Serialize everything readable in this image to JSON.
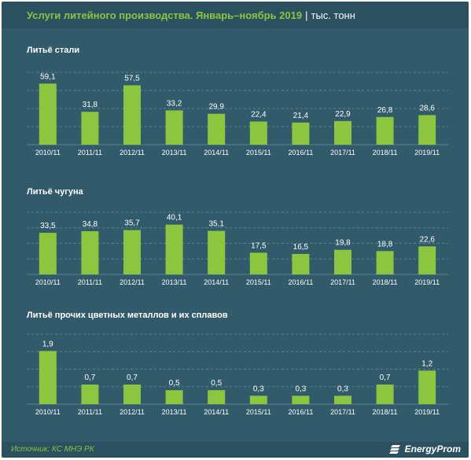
{
  "header": {
    "title": "Услуги литейного производства. Январь–ноябрь 2019",
    "separator": "|",
    "unit": "тыс. тонн"
  },
  "footer": {
    "source": "Источник: КС МНЭ РК",
    "brand": "EnergyProm"
  },
  "colors": {
    "background": "#315a6b",
    "header": "#2b505f",
    "bar": "#8cc63f",
    "title_accent": "#8cc63f",
    "grid": "#5f8290"
  },
  "icons": {
    "brand_logo": "energyprom-logo-icon"
  },
  "chart_data": [
    {
      "type": "bar",
      "title": "Литьё стали",
      "categories": [
        "2010/11",
        "2011/11",
        "2012/11",
        "2013/11",
        "2014/11",
        "2015/11",
        "2016/11",
        "2017/11",
        "2018/11",
        "2019/11"
      ],
      "values": [
        59.1,
        31.8,
        57.5,
        33.2,
        29.9,
        22.4,
        21.4,
        22.9,
        26.8,
        28.6
      ],
      "labels": [
        "59,1",
        "31,8",
        "57,5",
        "33,2",
        "29,9",
        "22,4",
        "21,4",
        "22,9",
        "26,8",
        "28,6"
      ],
      "ylim": [
        0,
        70
      ],
      "grid": true
    },
    {
      "type": "bar",
      "title": "Литьё чугуна",
      "categories": [
        "2010/11",
        "2011/11",
        "2012/11",
        "2013/11",
        "2014/11",
        "2015/11",
        "2016/11",
        "2017/11",
        "2018/11",
        "2019/11"
      ],
      "values": [
        33.5,
        34.8,
        35.7,
        40.1,
        35.1,
        17.5,
        16.5,
        19.8,
        18.8,
        22.6
      ],
      "labels": [
        "33,5",
        "34,8",
        "35,7",
        "40,1",
        "35,1",
        "17,5",
        "16,5",
        "19,8",
        "18,8",
        "22,6"
      ],
      "ylim": [
        0,
        50
      ],
      "grid": true
    },
    {
      "type": "bar",
      "title": "Литьё прочих цветных металлов и их сплавов",
      "categories": [
        "2010/11",
        "2011/11",
        "2012/11",
        "2013/11",
        "2014/11",
        "2015/11",
        "2016/11",
        "2017/11",
        "2018/11",
        "2019/11"
      ],
      "values": [
        1.9,
        0.7,
        0.7,
        0.5,
        0.5,
        0.3,
        0.3,
        0.3,
        0.7,
        1.2
      ],
      "labels": [
        "1,9",
        "0,7",
        "0,7",
        "0,5",
        "0,5",
        "0,3",
        "0,3",
        "0,3",
        "0,7",
        "1,2"
      ],
      "ylim": [
        0,
        2.5
      ],
      "grid": true
    }
  ]
}
